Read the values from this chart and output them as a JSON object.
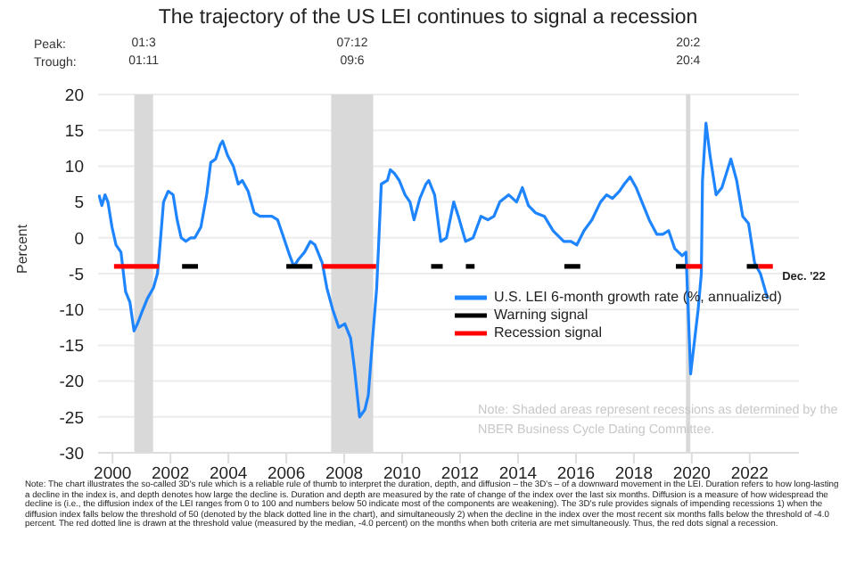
{
  "chart_data": {
    "type": "line",
    "title": "The trajectory of the US LEI continues to signal a recession",
    "ylabel": "Percent",
    "xlim": [
      1999.5,
      2023.7
    ],
    "xticks": [
      2000,
      2002,
      2004,
      2006,
      2008,
      2010,
      2012,
      2014,
      2016,
      2018,
      2020,
      2022
    ],
    "ylim": [
      -30,
      20
    ],
    "yticks": [
      -30,
      -25,
      -20,
      -15,
      -10,
      -5,
      0,
      5,
      10,
      15,
      20
    ],
    "grid": "y",
    "legend": "bottom right",
    "bands": [
      {
        "axis": "x",
        "from": 2000.75,
        "to": 2001.4,
        "label": "01:3\n01:11",
        "color": "#d9d9d9"
      },
      {
        "axis": "x",
        "from": 2007.55,
        "to": 2009.0,
        "label": "07:12\n09:6",
        "color": "#d9d9d9"
      },
      {
        "axis": "x",
        "from": 2019.8,
        "to": 2019.95,
        "label": "20:2\n20:4",
        "color": "#d9d9d9"
      }
    ],
    "annotations": [
      "Peak:",
      "Trough:",
      {
        "text": "Dec. '22",
        "x": 2022.75,
        "y": -4
      },
      "Note: Shaded areas represent recessions as determined by the NBER Business Cycle Dating Committee.",
      "Note: The chart illustrates the so-called 3D's rule which is a reliable rule of thumb to interpret the duration, depth, and diffusion – the 3D's – of a downward movement in the LEI. Duration refers to how long-lasting a decline in the index is, and depth denotes how large the decline is. Duration and depth are measured by the rate of change of the index over the last six months. Diffusion is a measure of how widespread the decline is (i.e., the diffusion index of the LEI ranges from 0 to 100 and numbers below 50 indicate most of the components are weakening). The 3D's rule provides signals of impending recessions 1) when the diffusion index falls below the threshold of 50 (denoted by the black dotted line in the chart), and simultaneously 2) when the decline in the index over the most recent six months falls below the threshold of -4.0 percent. The red dotted line is drawn at the threshold value (measured by the median, -4.0 percent) on the months when both criteria are met simultaneously. Thus, the red dots signal a recession."
    ],
    "series": [
      {
        "name": "U.S. LEI 6-month growth rate (%, annualized)",
        "color": "#1e85ff",
        "x": [
          1999.53,
          1999.63,
          1999.74,
          1999.84,
          1999.98,
          2000.12,
          2000.29,
          2000.45,
          2000.6,
          2000.74,
          2000.86,
          2001.0,
          2001.2,
          2001.41,
          2001.55,
          2001.61,
          2001.76,
          2001.92,
          2002.09,
          2002.23,
          2002.37,
          2002.53,
          2002.7,
          2002.84,
          2003.05,
          2003.25,
          2003.39,
          2003.56,
          2003.72,
          2003.8,
          2003.97,
          2004.17,
          2004.34,
          2004.48,
          2004.68,
          2004.89,
          2005.09,
          2005.3,
          2005.5,
          2005.7,
          2005.91,
          2006.12,
          2006.26,
          2006.42,
          2006.63,
          2006.83,
          2006.99,
          2007.24,
          2007.4,
          2007.6,
          2007.81,
          2008.02,
          2008.22,
          2008.36,
          2008.53,
          2008.71,
          2008.83,
          2008.98,
          2009.12,
          2009.28,
          2009.49,
          2009.59,
          2009.73,
          2009.9,
          2010.1,
          2010.27,
          2010.41,
          2010.61,
          2010.82,
          2010.92,
          2011.12,
          2011.33,
          2011.53,
          2011.78,
          2011.94,
          2012.19,
          2012.45,
          2012.72,
          2012.96,
          2013.17,
          2013.37,
          2013.68,
          2013.95,
          2014.15,
          2014.36,
          2014.6,
          2014.91,
          2015.21,
          2015.58,
          2015.83,
          2016.03,
          2016.28,
          2016.55,
          2016.85,
          2017.06,
          2017.26,
          2017.5,
          2017.67,
          2017.87,
          2018.08,
          2018.28,
          2018.53,
          2018.79,
          2019.0,
          2019.2,
          2019.41,
          2019.67,
          2019.8,
          2019.96,
          2020.22,
          2020.33,
          2020.37,
          2020.49,
          2020.63,
          2020.84,
          2021.04,
          2021.35,
          2021.55,
          2021.76,
          2021.96,
          2022.17,
          2022.37,
          2022.62
        ],
        "values": [
          6,
          4.5,
          6,
          5,
          1.5,
          -1,
          -2,
          -7.5,
          -9,
          -13,
          -12,
          -10.5,
          -8.5,
          -7,
          -5,
          -2.5,
          5,
          6.5,
          6,
          2.5,
          0,
          -0.5,
          0,
          0,
          1.5,
          6,
          10.5,
          11,
          13,
          13.5,
          11.5,
          10,
          7.5,
          8,
          6.5,
          3.5,
          3,
          3,
          3,
          2.5,
          0,
          -2.5,
          -4,
          -3,
          -2,
          -0.5,
          -1,
          -3.5,
          -7,
          -10,
          -12.5,
          -12,
          -14,
          -18.5,
          -25,
          -24,
          -22,
          -14,
          -7,
          7.5,
          8,
          9.5,
          9,
          8,
          6,
          5,
          2.5,
          5.5,
          7.5,
          8,
          6,
          -0.5,
          0,
          5,
          3,
          -0.5,
          0,
          3,
          2.5,
          3,
          5,
          6,
          5,
          7,
          4.5,
          3.5,
          3,
          1,
          -0.5,
          -0.5,
          -1,
          1,
          2.5,
          5,
          6,
          5.5,
          6.5,
          7.5,
          8.5,
          7,
          5,
          2.5,
          0.5,
          0.5,
          1,
          -1.5,
          -2.5,
          -2,
          -19,
          -10,
          -5,
          8,
          16,
          11.5,
          6,
          7,
          11,
          8,
          3,
          2,
          -3.5,
          -5,
          -8.5
        ]
      },
      {
        "name": "Warning signal",
        "color": "#000000",
        "x": [
          2002.4,
          2002.95,
          2003.0,
          2006.0,
          2006.9,
          2007.0,
          2011.0,
          2011.4,
          2011.5,
          2012.2,
          2012.5,
          2012.6,
          2015.6,
          2016.15,
          2016.2,
          2019.45,
          2019.8,
          2019.9,
          2021.9,
          2022.3
        ],
        "values": [
          -4,
          -4,
          null,
          -4,
          -4,
          null,
          -4,
          -4,
          null,
          -4,
          -4,
          null,
          -4,
          -4,
          null,
          -4,
          -4,
          null,
          -4,
          -4
        ]
      },
      {
        "name": "Recession signal",
        "color": "#ff0000",
        "x": [
          2000.05,
          2001.6,
          2001.7,
          2007.25,
          2009.1,
          2009.2,
          2019.8,
          2020.35,
          2020.4,
          2022.3,
          2022.8
        ],
        "values": [
          -4,
          -4,
          null,
          -4,
          -4,
          null,
          -4,
          -4,
          null,
          -4,
          -4
        ]
      }
    ]
  }
}
